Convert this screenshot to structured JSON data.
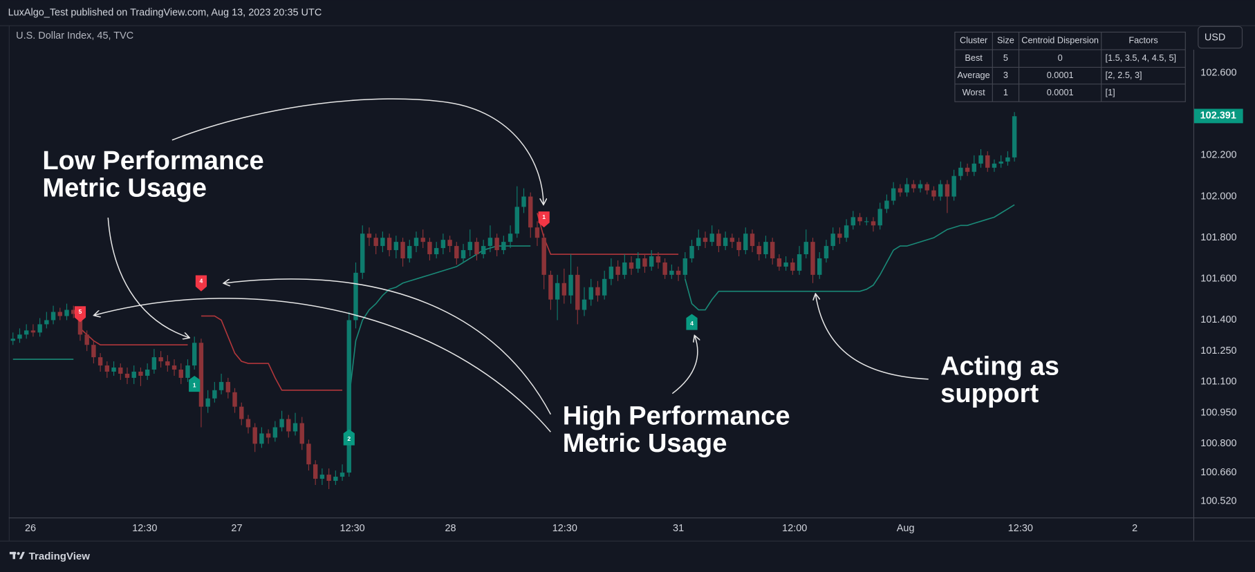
{
  "header": "LuxAlgo_Test published on TradingView.com, Aug 13, 2023 20:35 UTC",
  "footer": "TradingView",
  "currency": "USD",
  "table": {
    "header": [
      "Cluster",
      "Size",
      "Centroid Dispersion",
      "Factors"
    ],
    "rows": [
      [
        "Best",
        "5",
        "0",
        "[1.5, 3.5, 4, 4.5, 5]"
      ],
      [
        "Average",
        "3",
        "0.0001",
        "[2, 2.5, 3]"
      ],
      [
        "Worst",
        "1",
        "0.0001",
        "[1]"
      ]
    ]
  },
  "annotations": [
    {
      "lines": [
        "Low Performance",
        "Metric Usage"
      ]
    },
    {
      "lines": [
        "High Performance",
        "Metric Usage"
      ]
    },
    {
      "lines": [
        "Acting as",
        "support"
      ]
    }
  ],
  "chart_data": {
    "type": "candlestick",
    "title": "U.S. Dollar Index, 45, TVC",
    "up_color": "#0e7c6e",
    "down_color": "#8c3338",
    "grid": false,
    "open": [
      101.3,
      101.31,
      101.33,
      101.35,
      101.34,
      101.38,
      101.4,
      101.44,
      101.42,
      101.45,
      101.43,
      101.33,
      101.28,
      101.22,
      101.18,
      101.15,
      101.17,
      101.14,
      101.12,
      101.15,
      101.13,
      101.16,
      101.22,
      101.2,
      101.18,
      101.16,
      101.12,
      101.18,
      101.29,
      100.98,
      101.02,
      101.06,
      101.1,
      101.05,
      100.98,
      100.92,
      100.88,
      100.8,
      100.85,
      100.83,
      100.88,
      100.92,
      100.86,
      100.9,
      100.8,
      100.7,
      100.63,
      100.65,
      100.62,
      100.64,
      100.66,
      101.4,
      101.63,
      101.82,
      101.8,
      101.76,
      101.8,
      101.74,
      101.78,
      101.7,
      101.76,
      101.8,
      101.78,
      101.72,
      101.75,
      101.79,
      101.76,
      101.7,
      101.74,
      101.78,
      101.72,
      101.76,
      101.8,
      101.74,
      101.78,
      101.82,
      101.95,
      102.0,
      101.85,
      101.8,
      101.62,
      101.5,
      101.58,
      101.52,
      101.62,
      101.45,
      101.5,
      101.56,
      101.52,
      101.6,
      101.66,
      101.62,
      101.68,
      101.65,
      101.7,
      101.66,
      101.71,
      101.68,
      101.62,
      101.64,
      101.62,
      101.7,
      101.76,
      101.8,
      101.78,
      101.82,
      101.76,
      101.8,
      101.78,
      101.74,
      101.82,
      101.76,
      101.72,
      101.78,
      101.7,
      101.66,
      101.68,
      101.64,
      101.72,
      101.78,
      101.62,
      101.7,
      101.76,
      101.82,
      101.8,
      101.86,
      101.9,
      101.88,
      101.88,
      101.86,
      101.94,
      101.98,
      102.04,
      102.02,
      102.06,
      102.04,
      102.06,
      102.03,
      102.0,
      102.06,
      102.0,
      102.1,
      102.14,
      102.12,
      102.16,
      102.2,
      102.14,
      102.16,
      102.17,
      102.19
    ],
    "high": [
      101.34,
      101.36,
      101.38,
      101.38,
      101.41,
      101.44,
      101.47,
      101.46,
      101.48,
      101.47,
      101.45,
      101.35,
      101.3,
      101.24,
      101.2,
      101.2,
      101.19,
      101.17,
      101.18,
      101.17,
      101.19,
      101.26,
      101.25,
      101.23,
      101.21,
      101.19,
      101.21,
      101.32,
      101.31,
      101.06,
      101.1,
      101.14,
      101.12,
      101.07,
      101.0,
      100.94,
      100.9,
      100.88,
      100.87,
      100.91,
      100.96,
      100.94,
      100.95,
      100.93,
      100.82,
      100.72,
      100.68,
      100.68,
      100.67,
      100.7,
      101.44,
      101.68,
      101.86,
      101.85,
      101.82,
      101.83,
      101.82,
      101.81,
      101.8,
      101.79,
      101.83,
      101.84,
      101.8,
      101.78,
      101.82,
      101.81,
      101.78,
      101.77,
      101.84,
      101.8,
      101.79,
      101.86,
      101.82,
      101.81,
      101.86,
      102.05,
      102.04,
      102.02,
      101.88,
      101.82,
      101.64,
      101.62,
      101.65,
      101.72,
      101.66,
      101.56,
      101.6,
      101.59,
      101.64,
      101.7,
      101.69,
      101.72,
      101.71,
      101.73,
      101.72,
      101.74,
      101.73,
      101.7,
      101.67,
      101.66,
      101.73,
      101.79,
      101.84,
      101.83,
      101.86,
      101.84,
      101.83,
      101.82,
      101.8,
      101.85,
      101.84,
      101.78,
      101.81,
      101.8,
      101.72,
      101.71,
      101.7,
      101.76,
      101.84,
      101.8,
      101.73,
      101.79,
      101.85,
      101.85,
      101.89,
      101.93,
      101.92,
      101.9,
      101.9,
      101.97,
      102.01,
      102.07,
      102.06,
      102.09,
      102.08,
      102.08,
      102.07,
      102.05,
      102.08,
      102.08,
      102.13,
      102.17,
      102.16,
      102.2,
      102.23,
      102.22,
      102.18,
      102.2,
      102.22,
      102.41
    ],
    "low": [
      101.28,
      101.29,
      101.31,
      101.32,
      101.32,
      101.36,
      101.38,
      101.4,
      101.4,
      101.41,
      101.3,
      101.25,
      101.19,
      101.15,
      101.12,
      101.13,
      101.11,
      101.09,
      101.09,
      101.08,
      101.11,
      101.14,
      101.17,
      101.15,
      101.13,
      101.09,
      101.1,
      101.16,
      100.88,
      100.95,
      101.0,
      101.04,
      101.02,
      100.95,
      100.89,
      100.85,
      100.76,
      100.78,
      100.8,
      100.81,
      100.86,
      100.83,
      100.84,
      100.77,
      100.67,
      100.6,
      100.6,
      100.58,
      100.6,
      100.62,
      100.64,
      101.36,
      101.6,
      101.76,
      101.72,
      101.73,
      101.71,
      101.7,
      101.66,
      101.68,
      101.73,
      101.75,
      101.69,
      101.7,
      101.72,
      101.73,
      101.67,
      101.68,
      101.71,
      101.69,
      101.7,
      101.73,
      101.71,
      101.72,
      101.75,
      101.8,
      101.92,
      101.8,
      101.76,
      101.55,
      101.45,
      101.4,
      101.48,
      101.48,
      101.38,
      101.42,
      101.47,
      101.49,
      101.5,
      101.57,
      101.59,
      101.6,
      101.62,
      101.63,
      101.63,
      101.64,
      101.65,
      101.6,
      101.6,
      101.59,
      101.6,
      101.68,
      101.74,
      101.75,
      101.76,
      101.73,
      101.74,
      101.75,
      101.71,
      101.72,
      101.73,
      101.69,
      101.7,
      101.67,
      101.64,
      101.64,
      101.62,
      101.62,
      101.7,
      101.58,
      101.6,
      101.68,
      101.74,
      101.77,
      101.78,
      101.84,
      101.86,
      101.86,
      101.83,
      101.84,
      101.92,
      101.96,
      102.0,
      102.0,
      102.02,
      102.02,
      102.01,
      101.98,
      101.98,
      101.92,
      101.98,
      102.08,
      102.1,
      102.1,
      102.14,
      102.12,
      102.12,
      102.14,
      102.15,
      102.17
    ],
    "close": [
      101.31,
      101.33,
      101.35,
      101.34,
      101.38,
      101.4,
      101.44,
      101.42,
      101.45,
      101.43,
      101.33,
      101.28,
      101.22,
      101.18,
      101.15,
      101.17,
      101.14,
      101.12,
      101.15,
      101.13,
      101.16,
      101.22,
      101.2,
      101.18,
      101.16,
      101.12,
      101.18,
      101.29,
      100.98,
      101.02,
      101.06,
      101.1,
      101.05,
      100.98,
      100.92,
      100.88,
      100.8,
      100.85,
      100.83,
      100.88,
      100.92,
      100.86,
      100.9,
      100.8,
      100.7,
      100.63,
      100.65,
      100.62,
      100.64,
      100.66,
      101.4,
      101.63,
      101.82,
      101.8,
      101.76,
      101.8,
      101.74,
      101.78,
      101.7,
      101.76,
      101.8,
      101.78,
      101.72,
      101.75,
      101.79,
      101.76,
      101.7,
      101.74,
      101.78,
      101.72,
      101.76,
      101.8,
      101.74,
      101.78,
      101.82,
      101.95,
      102.0,
      101.85,
      101.8,
      101.62,
      101.5,
      101.58,
      101.52,
      101.62,
      101.45,
      101.5,
      101.56,
      101.52,
      101.6,
      101.66,
      101.62,
      101.68,
      101.65,
      101.7,
      101.66,
      101.71,
      101.68,
      101.62,
      101.64,
      101.62,
      101.7,
      101.76,
      101.8,
      101.78,
      101.82,
      101.76,
      101.8,
      101.78,
      101.74,
      101.82,
      101.76,
      101.72,
      101.78,
      101.7,
      101.66,
      101.68,
      101.64,
      101.72,
      101.78,
      101.62,
      101.7,
      101.76,
      101.82,
      101.8,
      101.86,
      101.9,
      101.88,
      101.88,
      101.86,
      101.94,
      101.98,
      102.04,
      102.02,
      102.06,
      102.04,
      102.06,
      102.03,
      102.0,
      102.06,
      102.0,
      102.1,
      102.14,
      102.12,
      102.16,
      102.2,
      102.14,
      102.16,
      102.17,
      102.19,
      102.39
    ],
    "overlays": [
      {
        "color": "#b2373b",
        "values": [
          null,
          null,
          null,
          null,
          null,
          null,
          null,
          null,
          null,
          null,
          101.36,
          101.33,
          101.3,
          101.28,
          101.28,
          101.28,
          101.28,
          101.28,
          101.28,
          101.28,
          101.28,
          101.28,
          101.28,
          101.28,
          101.28,
          101.28,
          101.28,
          null,
          101.42,
          101.42,
          101.42,
          101.4,
          101.32,
          101.24,
          101.2,
          101.19,
          101.19,
          101.19,
          101.19,
          101.12,
          101.06,
          101.06,
          101.06,
          101.06,
          101.06,
          101.06,
          101.06,
          101.06,
          101.06,
          101.06,
          null,
          null,
          null,
          null,
          null,
          null,
          null,
          null,
          null,
          null,
          null,
          null,
          null,
          null,
          null,
          null,
          null,
          null,
          null,
          null,
          null,
          null,
          null,
          null,
          null,
          null,
          null,
          null,
          101.92,
          101.8,
          101.72,
          101.72,
          101.72,
          101.72,
          101.72,
          101.72,
          101.72,
          101.72,
          101.72,
          101.72,
          101.72,
          101.72,
          101.72,
          101.72,
          101.72,
          101.72,
          101.72,
          101.72,
          101.72,
          101.72,
          null,
          null,
          null,
          null,
          null,
          null,
          null,
          null,
          null,
          null,
          null,
          null,
          null,
          null,
          null,
          null,
          null,
          null,
          null,
          null,
          null,
          null,
          null,
          null,
          null,
          null,
          null,
          null,
          null,
          null,
          null,
          null,
          null,
          null,
          null,
          null,
          null,
          null,
          null,
          null,
          null,
          null,
          null,
          null,
          null,
          null,
          null,
          null,
          null,
          null
        ]
      },
      {
        "color": "#1a8a78",
        "values": [
          101.21,
          101.21,
          101.21,
          101.21,
          101.21,
          101.21,
          101.21,
          101.21,
          101.21,
          101.21,
          null,
          null,
          null,
          null,
          null,
          null,
          null,
          null,
          null,
          null,
          null,
          null,
          null,
          null,
          null,
          null,
          null,
          null,
          null,
          null,
          null,
          null,
          null,
          null,
          null,
          null,
          null,
          null,
          null,
          null,
          null,
          null,
          null,
          null,
          null,
          null,
          null,
          null,
          null,
          null,
          101.02,
          101.3,
          101.4,
          101.45,
          101.48,
          101.52,
          101.55,
          101.56,
          101.58,
          101.59,
          101.6,
          101.61,
          101.62,
          101.63,
          101.64,
          101.65,
          101.66,
          101.68,
          101.7,
          101.72,
          101.74,
          101.75,
          101.76,
          101.76,
          101.76,
          101.76,
          101.76,
          101.76,
          null,
          null,
          null,
          null,
          null,
          null,
          null,
          null,
          null,
          null,
          null,
          null,
          null,
          null,
          null,
          null,
          null,
          null,
          null,
          null,
          null,
          null,
          101.6,
          101.48,
          101.45,
          101.45,
          101.5,
          101.54,
          101.54,
          101.54,
          101.54,
          101.54,
          101.54,
          101.54,
          101.54,
          101.54,
          101.54,
          101.54,
          101.54,
          101.54,
          101.54,
          101.54,
          101.54,
          101.54,
          101.54,
          101.54,
          101.54,
          101.54,
          101.54,
          101.55,
          101.57,
          101.62,
          101.68,
          101.74,
          101.76,
          101.76,
          101.77,
          101.78,
          101.79,
          101.8,
          101.82,
          101.84,
          101.85,
          101.86,
          101.86,
          101.87,
          101.88,
          101.89,
          101.9,
          101.92,
          101.94,
          101.96
        ]
      }
    ],
    "signals": [
      {
        "label": "5",
        "x": 10,
        "y": 101.39,
        "color": "#f23645",
        "position": "above"
      },
      {
        "label": "4",
        "x": 28,
        "y": 101.54,
        "color": "#f23645",
        "position": "above"
      },
      {
        "label": "1",
        "x": 79,
        "y": 101.85,
        "color": "#f23645",
        "position": "above"
      },
      {
        "label": "1",
        "x": 27,
        "y": 101.13,
        "color": "#089981",
        "position": "below"
      },
      {
        "label": "2",
        "x": 50,
        "y": 100.87,
        "color": "#089981",
        "position": "below"
      },
      {
        "label": "4",
        "x": 101,
        "y": 101.43,
        "color": "#089981",
        "position": "below"
      }
    ],
    "last_price": 102.391,
    "last_price_color": "#089981",
    "xlim": [
      -0.5,
      175.5
    ],
    "xticks": [
      {
        "value": 2.6,
        "label": "26"
      },
      {
        "value": 19.6,
        "label": "12:30"
      },
      {
        "value": 33.3,
        "label": "27"
      },
      {
        "value": 50.5,
        "label": "12:30"
      },
      {
        "value": 65.1,
        "label": "28"
      },
      {
        "value": 82.1,
        "label": "12:30"
      },
      {
        "value": 99.0,
        "label": "31"
      },
      {
        "value": 116.3,
        "label": "12:00"
      },
      {
        "value": 132.8,
        "label": "Aug"
      },
      {
        "value": 149.9,
        "label": "12:30"
      },
      {
        "value": 166.9,
        "label": "2"
      }
    ],
    "ylim": [
      100.442,
      102.709
    ],
    "yticks": [
      {
        "value": 102.6,
        "label": "102.600"
      },
      {
        "value": 102.2,
        "label": "102.200"
      },
      {
        "value": 102.0,
        "label": "102.000"
      },
      {
        "value": 101.8,
        "label": "101.800"
      },
      {
        "value": 101.6,
        "label": "101.600"
      },
      {
        "value": 101.4,
        "label": "101.400"
      },
      {
        "value": 101.25,
        "label": "101.250"
      },
      {
        "value": 101.1,
        "label": "101.100"
      },
      {
        "value": 100.95,
        "label": "100.950"
      },
      {
        "value": 100.8,
        "label": "100.800"
      },
      {
        "value": 100.66,
        "label": "100.660"
      },
      {
        "value": 100.52,
        "label": "100.520"
      }
    ]
  }
}
